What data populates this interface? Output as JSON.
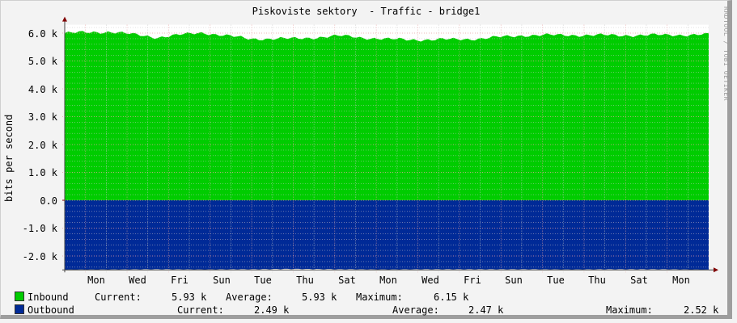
{
  "title": "Piskoviste sektory  - Traffic - bridge1",
  "watermark": "RRDTOOL / TOBI OETIKER",
  "colors": {
    "inbound": "#00cc00",
    "outbound": "#002a97",
    "background": "#f3f3f3",
    "canvas": "#ffffff",
    "grid_major": "#e5a0a0",
    "grid_minor": "#c8c8c8",
    "axis": "#800000"
  },
  "yaxis": {
    "label": "bits per second",
    "ticks": [
      "6.0 k",
      "5.0 k",
      "4.0 k",
      "3.0 k",
      "2.0 k",
      "1.0 k",
      "0.0",
      "-1.0 k",
      "-2.0 k"
    ]
  },
  "xaxis": {
    "ticks": [
      "Mon",
      "Wed",
      "Fri",
      "Sun",
      "Tue",
      "Thu",
      "Sat",
      "Mon",
      "Wed",
      "Fri",
      "Sun",
      "Tue",
      "Thu",
      "Sat",
      "Mon"
    ]
  },
  "legend": {
    "inbound": {
      "label": "Inbound",
      "current_label": "Current:",
      "current": "5.93 k",
      "average_label": "Average:",
      "average": "5.93 k",
      "maximum_label": "Maximum:",
      "maximum": "6.15 k"
    },
    "outbound": {
      "label": "Outbound",
      "current_label": "Current:",
      "current": "2.49 k",
      "average_label": "Average:",
      "average": "2.47 k",
      "maximum_label": "Maximum:",
      "maximum": "2.52 k"
    }
  },
  "chart_data": {
    "type": "area",
    "title": "Piskoviste sektory  - Traffic - bridge1",
    "xlabel": "",
    "ylabel": "bits per second",
    "ylim": [
      -2500,
      6300
    ],
    "grid": true,
    "legend_position": "bottom",
    "categories": [
      "Mon",
      "Wed",
      "Fri",
      "Sun",
      "Tue",
      "Thu",
      "Sat",
      "Mon",
      "Wed",
      "Fri",
      "Sun",
      "Tue",
      "Thu",
      "Sat",
      "Mon"
    ],
    "series": [
      {
        "name": "Inbound",
        "color": "#00cc00",
        "direction": "positive",
        "values": [
          6000,
          6050,
          5850,
          6020,
          5800,
          5800,
          5900,
          5780,
          5760,
          5800,
          5920,
          5930,
          5920,
          5930,
          5950
        ],
        "current": 5930,
        "average": 5930,
        "maximum": 6150
      },
      {
        "name": "Outbound",
        "color": "#002a97",
        "direction": "negative",
        "values": [
          2490,
          2480,
          2470,
          2480,
          2470,
          2460,
          2470,
          2480,
          2470,
          2470,
          2470,
          2480,
          2470,
          2470,
          2490
        ],
        "current": 2490,
        "average": 2470,
        "maximum": 2520
      }
    ]
  }
}
